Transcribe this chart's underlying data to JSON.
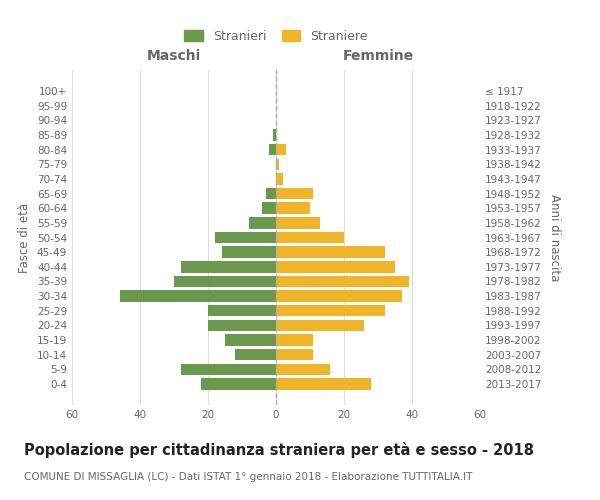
{
  "age_groups": [
    "0-4",
    "5-9",
    "10-14",
    "15-19",
    "20-24",
    "25-29",
    "30-34",
    "35-39",
    "40-44",
    "45-49",
    "50-54",
    "55-59",
    "60-64",
    "65-69",
    "70-74",
    "75-79",
    "80-84",
    "85-89",
    "90-94",
    "95-99",
    "100+"
  ],
  "birth_years": [
    "2013-2017",
    "2008-2012",
    "2003-2007",
    "1998-2002",
    "1993-1997",
    "1988-1992",
    "1983-1987",
    "1978-1982",
    "1973-1977",
    "1968-1972",
    "1963-1967",
    "1958-1962",
    "1953-1957",
    "1948-1952",
    "1943-1947",
    "1938-1942",
    "1933-1937",
    "1928-1932",
    "1923-1927",
    "1918-1922",
    "≤ 1917"
  ],
  "males": [
    22,
    28,
    12,
    15,
    20,
    20,
    46,
    30,
    28,
    16,
    18,
    8,
    4,
    3,
    0,
    0,
    2,
    1,
    0,
    0,
    0
  ],
  "females": [
    28,
    16,
    11,
    11,
    26,
    32,
    37,
    39,
    35,
    32,
    20,
    13,
    10,
    11,
    2,
    1,
    3,
    0,
    0,
    0,
    0
  ],
  "male_color": "#6a994e",
  "female_color": "#f0b429",
  "bar_height": 0.78,
  "xlim": 60,
  "title": "Popolazione per cittadinanza straniera per età e sesso - 2018",
  "subtitle": "COMUNE DI MISSAGLIA (LC) - Dati ISTAT 1° gennaio 2018 - Elaborazione TUTTITALIA.IT",
  "ylabel_left": "Fasce di età",
  "ylabel_right": "Anni di nascita",
  "header_left": "Maschi",
  "header_right": "Femmine",
  "legend_male": "Stranieri",
  "legend_female": "Straniere",
  "background_color": "#ffffff",
  "grid_color": "#cccccc",
  "text_color": "#666666",
  "title_fontsize": 10.5,
  "subtitle_fontsize": 7.5,
  "axis_label_fontsize": 8.5,
  "tick_fontsize": 7.5
}
